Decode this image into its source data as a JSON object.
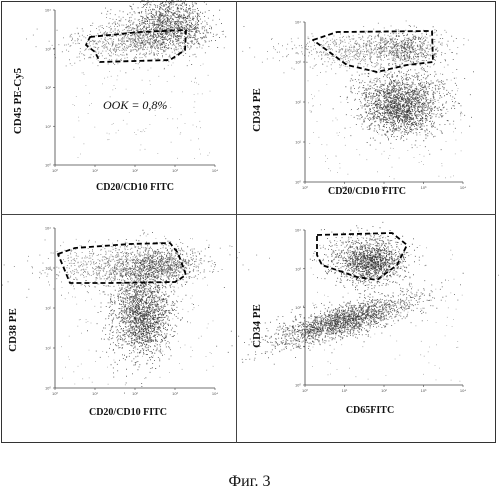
{
  "figure": {
    "caption": "Фиг. 3"
  },
  "panels": [
    {
      "id": "top-left",
      "ylabel": "CD45 PE-Cy5",
      "xlabel": "CD20/CD10 FITC",
      "annotation": "OOK = 0,8%",
      "tick_labels": [
        "10⁰",
        "10¹",
        "10²",
        "10³",
        "10⁴"
      ]
    },
    {
      "id": "top-right",
      "ylabel": "CD34 PE",
      "xlabel": "CD20/CD10 FITC",
      "tick_labels": [
        "10⁰",
        "10¹",
        "10²",
        "10³",
        "10⁴"
      ]
    },
    {
      "id": "bottom-left",
      "ylabel": "CD38 PE",
      "xlabel": "CD20/CD10 FITC",
      "tick_labels": [
        "10⁰",
        "10¹",
        "10²",
        "10³",
        "10⁴"
      ]
    },
    {
      "id": "bottom-right",
      "ylabel": "CD34 PE",
      "xlabel": "CD65FITC",
      "tick_labels": [
        "10⁰",
        "10¹",
        "10²",
        "10³",
        "10⁴"
      ]
    }
  ],
  "colors": {
    "dots": "#2a2a2a",
    "gate": "#000000",
    "axis": "#444444"
  }
}
